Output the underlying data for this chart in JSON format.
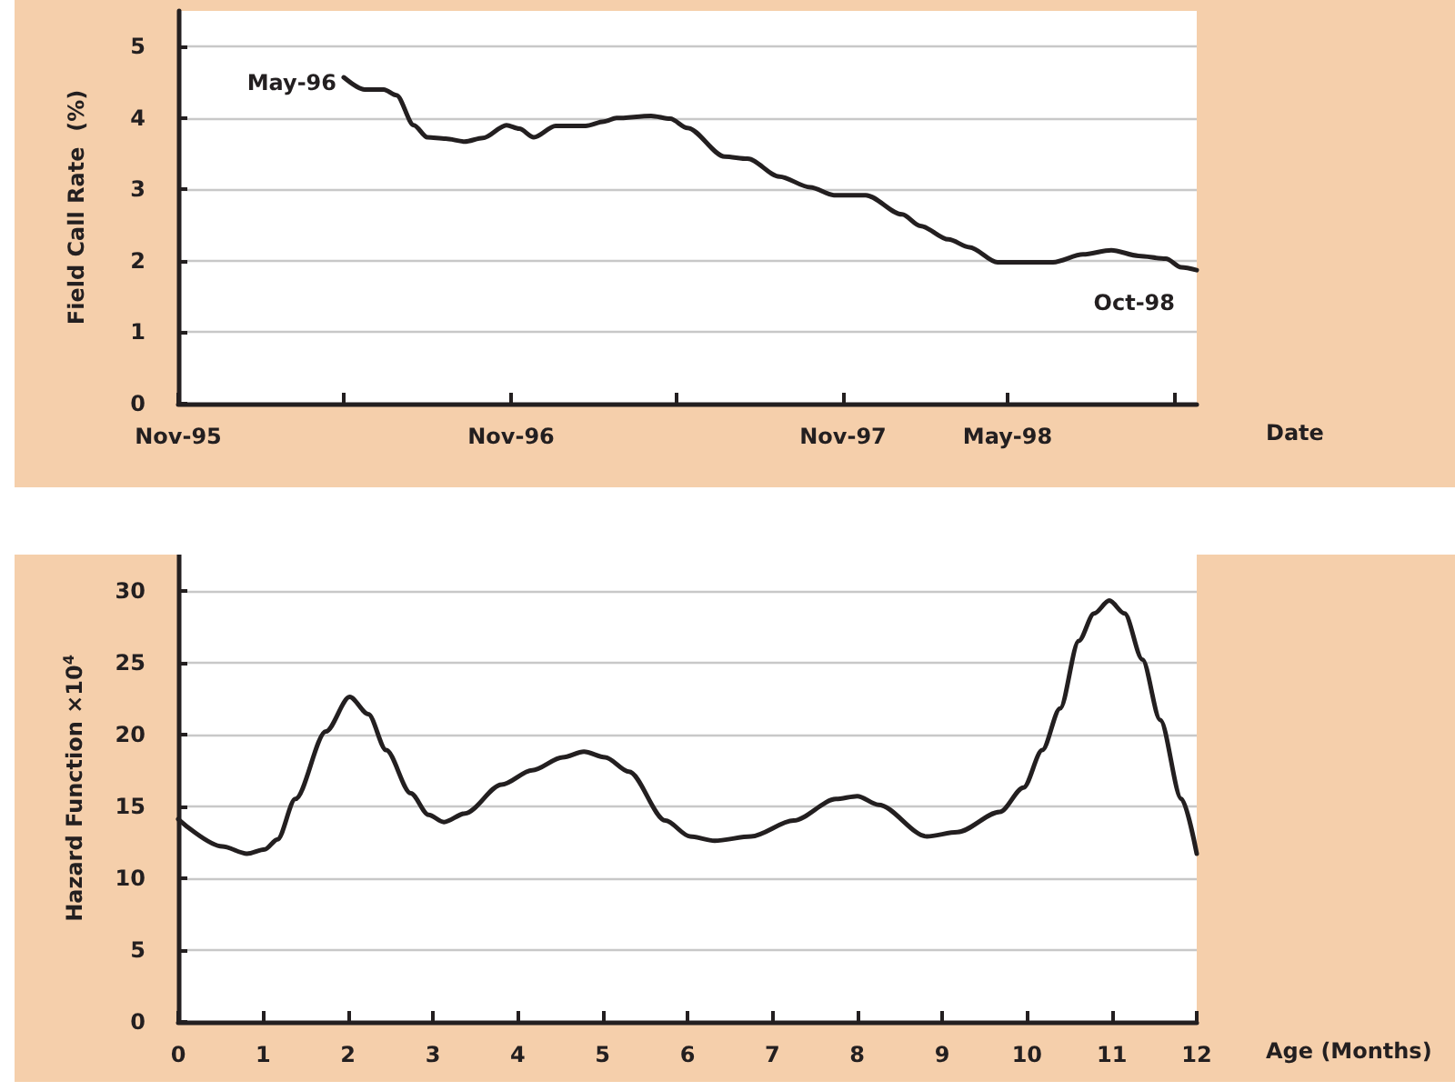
{
  "chart_data": [
    {
      "type": "line",
      "ylabel": "Field Call Rate  (%)",
      "xlabel": "Date",
      "x": [
        "1996-05-01",
        "1996-05-24",
        "1996-06-14",
        "1996-06-28",
        "1996-07-17",
        "1996-08-01",
        "1996-08-21",
        "1996-09-11",
        "1996-10-01",
        "1996-10-27",
        "1996-11-10",
        "1996-11-26",
        "1996-12-20",
        "1997-01-22",
        "1997-02-11",
        "1997-02-25",
        "1997-04-04",
        "1997-04-25",
        "1997-05-14",
        "1997-06-24",
        "1997-07-19",
        "1997-08-23",
        "1997-09-26",
        "1997-10-22",
        "1997-11-26",
        "1998-01-05",
        "1998-01-25",
        "1998-02-25",
        "1998-03-20",
        "1998-04-20",
        "1998-06-20",
        "1998-07-23",
        "1998-08-23",
        "1998-09-22",
        "1998-10-22",
        "1998-11-08",
        "1998-11-25"
      ],
      "series": [
        {
          "color": "#231f20",
          "values": [
            4.57,
            4.4,
            4.4,
            4.32,
            3.9,
            3.73,
            3.71,
            3.67,
            3.72,
            3.9,
            3.85,
            3.73,
            3.89,
            3.89,
            3.95,
            4.0,
            4.03,
            3.99,
            3.86,
            3.46,
            3.43,
            3.18,
            3.03,
            2.92,
            2.92,
            2.65,
            2.49,
            2.3,
            2.19,
            1.98,
            1.98,
            2.09,
            2.15,
            2.07,
            2.03,
            1.91,
            1.87
          ]
        }
      ],
      "xlim": [
        "1995-11-01",
        "1998-11-25"
      ],
      "xticks": [
        {
          "value": "1995-11-01",
          "label": "Nov-95"
        },
        {
          "value": "1996-05-01",
          "label": null
        },
        {
          "value": "1996-11-01",
          "label": "Nov-96"
        },
        {
          "value": "1997-05-01",
          "label": null
        },
        {
          "value": "1997-11-01",
          "label": "Nov-97"
        },
        {
          "value": "1998-05-01",
          "label": "May-98"
        },
        {
          "value": "1998-11-01",
          "label": null
        }
      ],
      "ylim": [
        0,
        5.5
      ],
      "yticks": [
        0,
        1,
        2,
        3,
        4,
        5
      ],
      "grid": "y",
      "marker": "none",
      "line_style": "solid",
      "annotations": [
        "May-96",
        "Oct-98"
      ]
    },
    {
      "type": "line",
      "ylabel": "Hazard Function ×10$^{4}$",
      "xlabel": "Age (Months)",
      "x": [
        0,
        0.52,
        0.81,
        1.02,
        1.17,
        1.38,
        1.74,
        2.02,
        2.24,
        2.45,
        2.74,
        2.95,
        3.13,
        3.38,
        3.81,
        4.17,
        4.53,
        4.78,
        5.03,
        5.31,
        5.74,
        6.03,
        6.32,
        6.75,
        7.25,
        7.75,
        8.0,
        8.25,
        8.82,
        9.18,
        9.68,
        9.96,
        10.18,
        10.39,
        10.61,
        10.79,
        10.97,
        11.15,
        11.36,
        11.57,
        11.82,
        12
      ],
      "series": [
        {
          "color": "#231f20",
          "values": [
            14.1,
            12.2,
            11.7,
            12.0,
            12.7,
            15.5,
            20.2,
            22.6,
            21.4,
            18.9,
            15.9,
            14.4,
            13.9,
            14.5,
            16.5,
            17.5,
            18.4,
            18.8,
            18.4,
            17.4,
            14.0,
            12.9,
            12.6,
            12.9,
            14.0,
            15.5,
            15.7,
            15.1,
            12.9,
            13.2,
            14.6,
            16.3,
            18.9,
            21.8,
            26.5,
            28.4,
            29.3,
            28.4,
            25.2,
            21.0,
            15.5,
            11.7
          ]
        }
      ],
      "xlim": [
        0,
        12
      ],
      "xticks": [
        0,
        1,
        2,
        3,
        4,
        5,
        6,
        7,
        8,
        9,
        10,
        11,
        12
      ],
      "ylim": [
        0,
        32.5
      ],
      "yticks": [
        0,
        5,
        10,
        15,
        20,
        25,
        30
      ],
      "grid": "y",
      "marker": "none",
      "line_style": "solid"
    }
  ]
}
